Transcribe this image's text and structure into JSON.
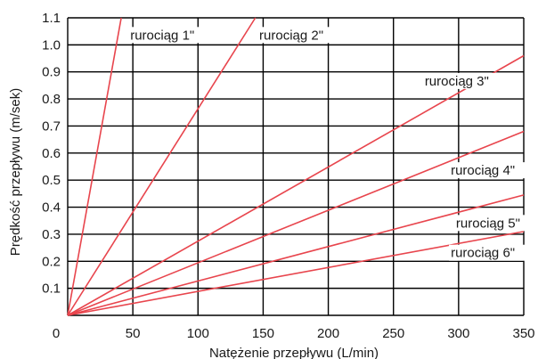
{
  "chart_data": {
    "type": "line",
    "title": "",
    "xlabel": "Natężenie przepływu  (L/min)",
    "ylabel": "Prędkość przepływu (m/sek)",
    "xlim": [
      0,
      350
    ],
    "ylim": [
      0,
      1.1
    ],
    "x_ticks": [
      0,
      50,
      100,
      150,
      200,
      250,
      300,
      350
    ],
    "y_ticks": [
      0.1,
      0.2,
      0.3,
      0.4,
      0.5,
      0.6,
      0.7,
      0.8,
      0.9,
      1.0,
      1.1
    ],
    "x_tick_labels": [
      "0",
      "50",
      "100",
      "150",
      "200",
      "250",
      "300",
      "350"
    ],
    "y_tick_labels": [
      "0.1",
      "0.2",
      "0.3",
      "0.4",
      "0.5",
      "0.6",
      "0.7",
      "0.8",
      "0.9",
      "1.0",
      "1.1"
    ],
    "grid": true,
    "line_color": "#e8454d",
    "series": [
      {
        "name": "rurociąg 1\"",
        "x": [
          0,
          41.1
        ],
        "y": [
          0,
          1.1
        ]
      },
      {
        "name": "rurociąg 2\"",
        "x": [
          0,
          144
        ],
        "y": [
          0,
          1.1
        ]
      },
      {
        "name": "rurociąg 3\"",
        "x": [
          0,
          350
        ],
        "y": [
          0,
          0.96
        ]
      },
      {
        "name": "rurociąg 4\"",
        "x": [
          0,
          350
        ],
        "y": [
          0,
          0.68
        ]
      },
      {
        "name": "rurociąg 5\"",
        "x": [
          0,
          350
        ],
        "y": [
          0,
          0.445
        ]
      },
      {
        "name": "rurociąg 6\"",
        "x": [
          0,
          350
        ],
        "y": [
          0,
          0.31
        ]
      }
    ],
    "annotations": [
      {
        "text": "rurociąg 1\"",
        "x": 48,
        "y": 1.02
      },
      {
        "text": "rurociąg 2\"",
        "x": 147,
        "y": 1.02
      },
      {
        "text": "rurociąg 3\"",
        "x": 274,
        "y": 0.85
      },
      {
        "text": "rurociąg 4\"",
        "x": 294,
        "y": 0.52
      },
      {
        "text": "rurociąg 5\"",
        "x": 298,
        "y": 0.325
      },
      {
        "text": "rurociąg 6\"",
        "x": 294,
        "y": 0.215
      }
    ]
  }
}
